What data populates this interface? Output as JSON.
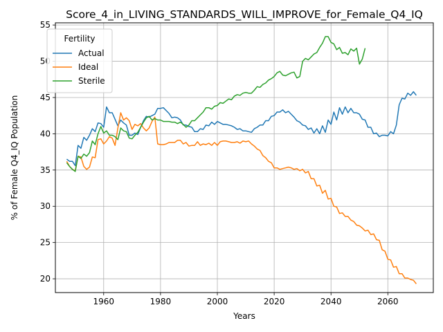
{
  "chart_data": {
    "type": "line",
    "title": "Score_4_in_LIVING_STANDARDS_WILL_IMPROVE_for_Female_Q4_IQ",
    "xlabel": "Years",
    "ylabel": "% of Female Q4_IQ Population",
    "xlim": [
      1943,
      2076
    ],
    "ylim": [
      18.1,
      55.3
    ],
    "xticks": [
      1960,
      1980,
      2000,
      2020,
      2040,
      2060
    ],
    "yticks": [
      20,
      25,
      30,
      35,
      40,
      45,
      50,
      55
    ],
    "grid": true,
    "legend": {
      "title": "Fertility",
      "position": "top-left"
    },
    "series": [
      {
        "name": "Actual",
        "color": "#1f77b4",
        "x": [
          1947,
          1948,
          1949,
          1950,
          1951,
          1952,
          1953,
          1954,
          1955,
          1956,
          1957,
          1958,
          1959,
          1960,
          1961,
          1962,
          1963,
          1964,
          1965,
          1966,
          1967,
          1968,
          1969,
          1970,
          1971,
          1972,
          1973,
          1974,
          1975,
          1976,
          1977,
          1978,
          1979,
          1980,
          1981,
          1982,
          1983,
          1984,
          1985,
          1986,
          1987,
          1988,
          1989,
          1990,
          1991,
          1992,
          1993,
          1994,
          1995,
          1996,
          1997,
          1998,
          1999,
          2000,
          2001,
          2002,
          2003,
          2004,
          2005,
          2006,
          2007,
          2008,
          2009,
          2010,
          2011,
          2012,
          2013,
          2014,
          2015,
          2016,
          2017,
          2018,
          2019,
          2020,
          2021,
          2022,
          2023,
          2024,
          2025,
          2026,
          2027,
          2028,
          2029,
          2030,
          2031,
          2032,
          2033,
          2034,
          2035,
          2036,
          2037,
          2038,
          2039,
          2040,
          2041,
          2042,
          2043,
          2044,
          2045,
          2046,
          2047,
          2048,
          2049,
          2050,
          2051,
          2052,
          2053,
          2054,
          2055,
          2056,
          2057,
          2058,
          2059,
          2060,
          2061,
          2062,
          2063,
          2064,
          2065,
          2066,
          2067,
          2068,
          2069,
          2070
        ],
        "y": [
          36.5,
          36.2,
          36.2,
          35.6,
          38.4,
          38.0,
          39.5,
          39.1,
          39.8,
          40.7,
          40.3,
          41.5,
          41.4,
          40.9,
          43.7,
          42.9,
          42.9,
          42.0,
          41.1,
          41.9,
          41.5,
          41.2,
          39.8,
          39.8,
          40.1,
          39.9,
          40.9,
          41.8,
          42.4,
          42.3,
          42.5,
          42.7,
          43.5,
          43.5,
          43.6,
          43.2,
          42.8,
          42.2,
          42.3,
          42.2,
          41.9,
          41.2,
          41.2,
          41.0,
          40.9,
          40.3,
          40.3,
          40.7,
          40.6,
          41.2,
          41.1,
          41.6,
          41.3,
          41.7,
          41.5,
          41.3,
          41.3,
          41.2,
          41.1,
          40.9,
          40.6,
          40.7,
          40.4,
          40.4,
          40.3,
          40.2,
          40.7,
          40.9,
          41.2,
          41.2,
          41.8,
          41.8,
          42.4,
          42.5,
          43.0,
          43.0,
          43.3,
          42.9,
          43.1,
          42.7,
          42.3,
          41.8,
          41.6,
          41.2,
          41.1,
          40.6,
          40.8,
          40.1,
          40.7,
          40.0,
          41.1,
          40.2,
          41.9,
          41.3,
          43.0,
          41.9,
          43.6,
          42.7,
          43.7,
          42.9,
          43.5,
          42.9,
          42.9,
          42.7,
          42.0,
          41.9,
          40.9,
          40.9,
          40.0,
          40.1,
          39.6,
          39.8,
          39.8,
          39.7,
          40.3,
          40.0,
          41.2,
          44.0,
          44.9,
          44.8,
          45.6,
          45.3,
          45.8,
          45.3
        ]
      },
      {
        "name": "Ideal",
        "color": "#ff7f0e",
        "x": [
          1947,
          1948,
          1949,
          1950,
          1951,
          1952,
          1953,
          1954,
          1955,
          1956,
          1957,
          1958,
          1959,
          1960,
          1961,
          1962,
          1963,
          1964,
          1965,
          1966,
          1967,
          1968,
          1969,
          1970,
          1971,
          1972,
          1973,
          1974,
          1975,
          1976,
          1977,
          1978,
          1979,
          1980,
          1981,
          1982,
          1983,
          1984,
          1985,
          1986,
          1987,
          1988,
          1989,
          1990,
          1991,
          1992,
          1993,
          1994,
          1995,
          1996,
          1997,
          1998,
          1999,
          2000,
          2001,
          2002,
          2003,
          2004,
          2005,
          2006,
          2007,
          2008,
          2009,
          2010,
          2011,
          2012,
          2013,
          2014,
          2015,
          2016,
          2017,
          2018,
          2019,
          2020,
          2021,
          2022,
          2023,
          2024,
          2025,
          2026,
          2027,
          2028,
          2029,
          2030,
          2031,
          2032,
          2033,
          2034,
          2035,
          2036,
          2037,
          2038,
          2039,
          2040,
          2041,
          2042,
          2043,
          2044,
          2045,
          2046,
          2047,
          2048,
          2049,
          2050,
          2051,
          2052,
          2053,
          2054,
          2055,
          2056,
          2057,
          2058,
          2059,
          2060,
          2061,
          2062,
          2063,
          2064,
          2065,
          2066,
          2067,
          2068,
          2069,
          2070
        ],
        "y": [
          36.2,
          35.5,
          35.1,
          34.9,
          36.9,
          36.8,
          35.5,
          35.1,
          35.4,
          36.8,
          36.7,
          39.2,
          39.3,
          38.6,
          39.0,
          39.6,
          39.4,
          38.4,
          40.8,
          42.9,
          41.9,
          42.2,
          41.8,
          40.6,
          41.3,
          41.1,
          41.4,
          40.8,
          40.4,
          40.8,
          41.7,
          42.3,
          38.6,
          38.5,
          38.5,
          38.6,
          38.8,
          38.8,
          38.8,
          39.1,
          39.1,
          38.6,
          38.8,
          38.3,
          38.4,
          38.4,
          38.9,
          38.4,
          38.6,
          38.5,
          38.7,
          38.4,
          38.8,
          38.4,
          38.9,
          39.0,
          39.0,
          38.9,
          38.8,
          38.8,
          38.9,
          38.7,
          39.0,
          38.9,
          39.0,
          38.6,
          38.3,
          37.9,
          37.7,
          37.0,
          36.7,
          36.2,
          36.0,
          35.3,
          35.3,
          35.1,
          35.2,
          35.3,
          35.4,
          35.3,
          35.1,
          35.2,
          34.9,
          35.1,
          34.6,
          34.8,
          33.8,
          33.8,
          32.8,
          32.9,
          31.8,
          32.2,
          31.0,
          31.1,
          30.0,
          29.9,
          29.0,
          29.1,
          28.6,
          28.6,
          28.1,
          27.9,
          27.4,
          27.3,
          27.0,
          26.6,
          26.7,
          26.1,
          26.2,
          25.4,
          25.3,
          24.0,
          23.8,
          22.7,
          22.6,
          21.6,
          21.7,
          20.7,
          20.7,
          20.1,
          20.1,
          19.9,
          19.8,
          19.3
        ]
      },
      {
        "name": "Sterile",
        "color": "#2ca02c",
        "x": [
          1947,
          1948,
          1949,
          1950,
          1951,
          1952,
          1953,
          1954,
          1955,
          1956,
          1957,
          1958,
          1959,
          1960,
          1961,
          1962,
          1963,
          1964,
          1965,
          1966,
          1967,
          1968,
          1969,
          1970,
          1971,
          1972,
          1973,
          1974,
          1975,
          1976,
          1977,
          1978,
          1979,
          1980,
          1981,
          1982,
          1983,
          1984,
          1985,
          1986,
          1987,
          1988,
          1989,
          1990,
          1991,
          1992,
          1993,
          1994,
          1995,
          1996,
          1997,
          1998,
          1999,
          2000,
          2001,
          2002,
          2003,
          2004,
          2005,
          2006,
          2007,
          2008,
          2009,
          2010,
          2011,
          2012,
          2013,
          2014,
          2015,
          2016,
          2017,
          2018,
          2019,
          2020,
          2021,
          2022,
          2023,
          2024,
          2025,
          2026,
          2027,
          2028,
          2029,
          2030,
          2031,
          2032,
          2033,
          2034,
          2035,
          2036,
          2037,
          2038,
          2039,
          2040,
          2041,
          2042,
          2043,
          2044,
          2045,
          2046,
          2047,
          2048,
          2049,
          2050,
          2051,
          2052
        ],
        "y": [
          36.0,
          35.5,
          35.1,
          34.8,
          36.9,
          36.6,
          37.2,
          36.9,
          37.4,
          39.0,
          38.5,
          40.0,
          41.0,
          40.1,
          40.4,
          39.8,
          39.8,
          39.6,
          39.2,
          40.8,
          40.4,
          40.3,
          39.4,
          39.3,
          39.8,
          40.2,
          40.9,
          41.6,
          42.2,
          42.4,
          41.9,
          42.1,
          41.9,
          41.9,
          41.7,
          41.7,
          41.7,
          41.6,
          41.6,
          41.4,
          41.6,
          41.3,
          40.9,
          41.2,
          41.8,
          41.8,
          42.2,
          42.6,
          43.0,
          43.6,
          43.6,
          43.4,
          43.8,
          43.9,
          44.3,
          44.2,
          44.5,
          44.8,
          44.7,
          45.2,
          45.4,
          45.3,
          45.6,
          45.7,
          45.6,
          45.6,
          46.0,
          46.5,
          46.4,
          46.8,
          47.0,
          47.4,
          47.6,
          47.9,
          48.4,
          48.6,
          48.1,
          48.0,
          48.2,
          48.4,
          48.5,
          47.7,
          47.9,
          50.0,
          50.4,
          50.2,
          50.6,
          51.0,
          51.2,
          51.9,
          52.5,
          53.4,
          53.4,
          52.6,
          52.4,
          51.6,
          51.9,
          51.1,
          51.2,
          50.9,
          51.7,
          51.4,
          51.8,
          49.6,
          50.3,
          51.8
        ]
      }
    ]
  }
}
